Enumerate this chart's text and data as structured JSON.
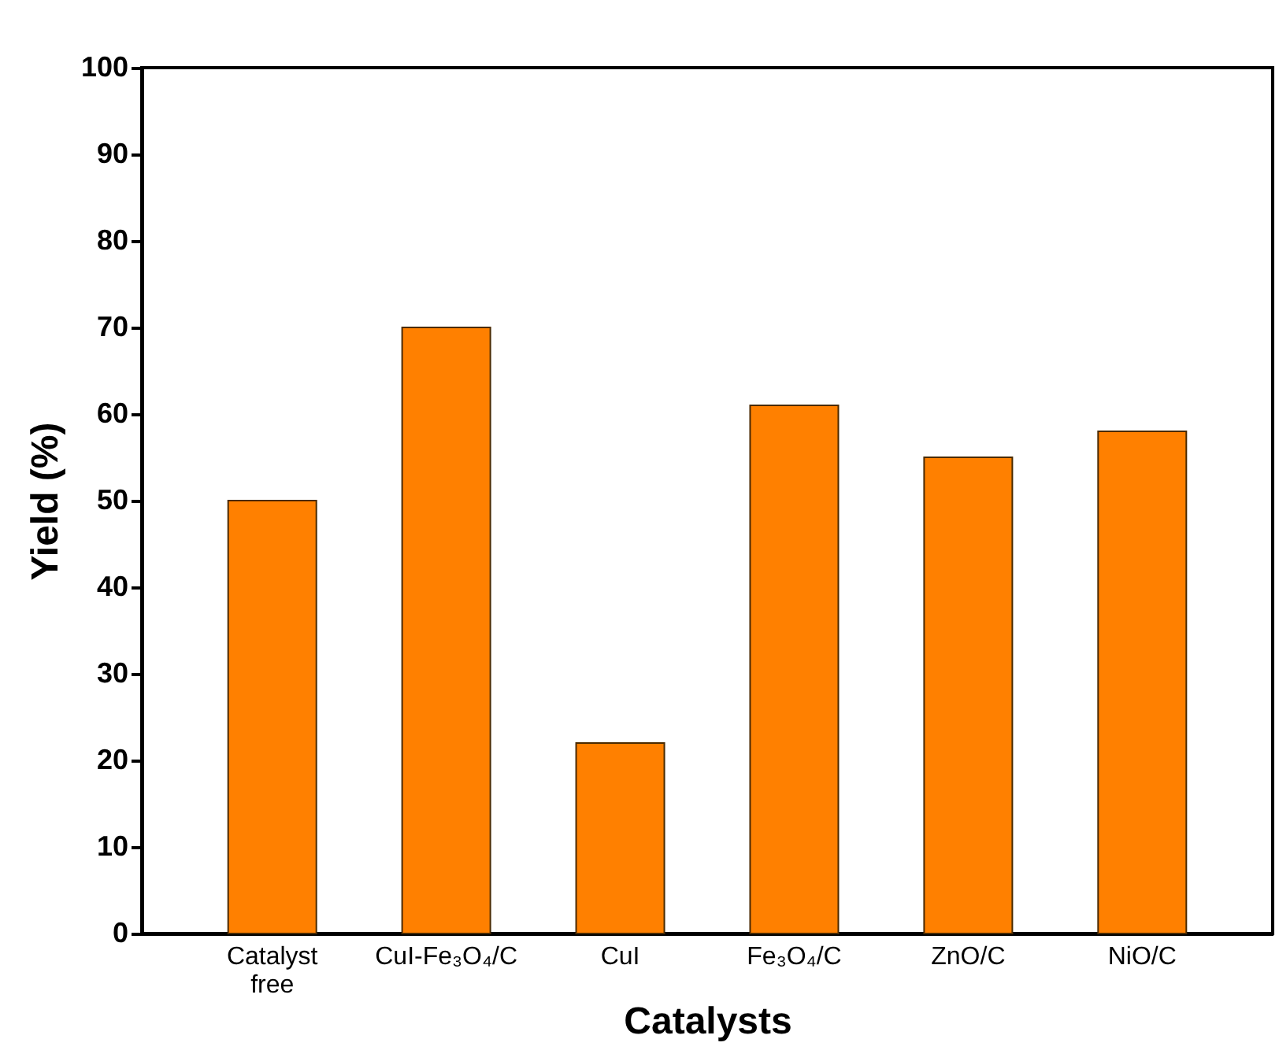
{
  "chart_data": {
    "type": "bar",
    "xlabel": "Catalysts",
    "ylabel": "Yield (%)",
    "categories": [
      "Catalyst free",
      "CuI-Fe₃O₄/C",
      "CuI",
      "Fe₃O₄/C",
      "ZnO/C",
      "NiO/C"
    ],
    "values": [
      50,
      70,
      22,
      61,
      55,
      58
    ],
    "color": "#ff8000",
    "ylim": [
      0,
      100
    ],
    "yticks": [
      0,
      10,
      20,
      30,
      40,
      50,
      60,
      70,
      80,
      90,
      100
    ],
    "grid": false
  }
}
